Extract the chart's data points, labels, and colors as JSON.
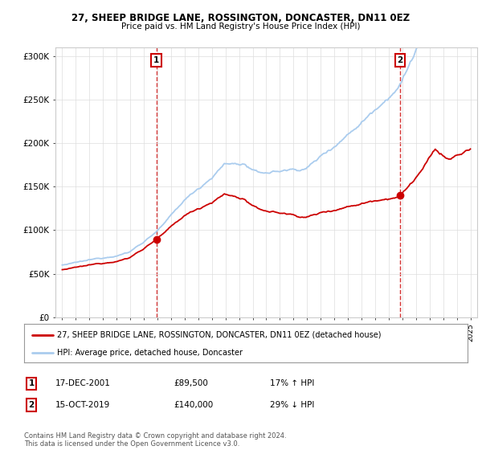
{
  "title1": "27, SHEEP BRIDGE LANE, ROSSINGTON, DONCASTER, DN11 0EZ",
  "title2": "Price paid vs. HM Land Registry's House Price Index (HPI)",
  "ylabel_ticks": [
    "£0",
    "£50K",
    "£100K",
    "£150K",
    "£200K",
    "£250K",
    "£300K"
  ],
  "ytick_values": [
    0,
    50000,
    100000,
    150000,
    200000,
    250000,
    300000
  ],
  "ylim": [
    0,
    310000
  ],
  "background_color": "#ffffff",
  "plot_bg_color": "#ffffff",
  "hpi_color": "#aaccee",
  "price_color": "#cc0000",
  "sale1_date": "17-DEC-2001",
  "sale1_price": 89500,
  "sale1_hpi_pct": "17% ↑ HPI",
  "sale2_date": "15-OCT-2019",
  "sale2_price": 140000,
  "sale2_hpi_pct": "29% ↓ HPI",
  "legend_label1": "27, SHEEP BRIDGE LANE, ROSSINGTON, DONCASTER, DN11 0EZ (detached house)",
  "legend_label2": "HPI: Average price, detached house, Doncaster",
  "footnote": "Contains HM Land Registry data © Crown copyright and database right 2024.\nThis data is licensed under the Open Government Licence v3.0.",
  "x_start_year": 1995,
  "x_end_year": 2025
}
